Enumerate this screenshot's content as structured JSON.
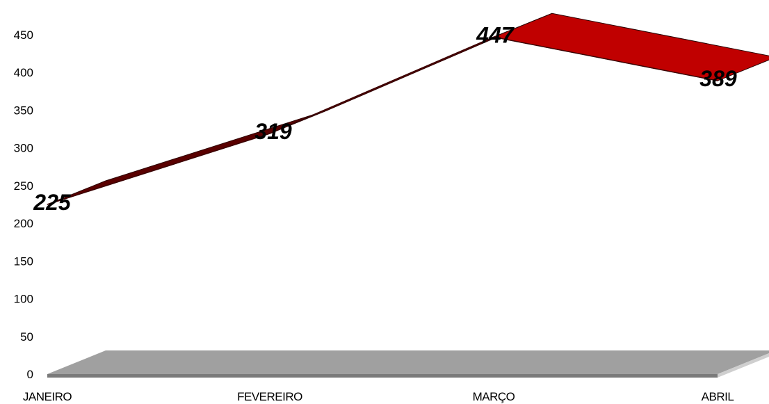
{
  "chart_data": {
    "type": "line",
    "style": "3d-ribbon",
    "categories": [
      "JANEIRO",
      "FEVEREIRO",
      "MARÇO",
      "ABRIL"
    ],
    "series": [
      {
        "values": [
          225,
          319,
          447,
          389
        ],
        "color": "#c00000",
        "shade_color": "#5a0000"
      }
    ],
    "data_labels": [
      "225",
      "319",
      "447",
      "389"
    ],
    "ylim": [
      0,
      450
    ],
    "yticks": [
      "0",
      "50",
      "100",
      "150",
      "200",
      "250",
      "300",
      "350",
      "400",
      "450"
    ],
    "floor_color": "#a0a0a0",
    "grid": false,
    "legend": "none"
  }
}
